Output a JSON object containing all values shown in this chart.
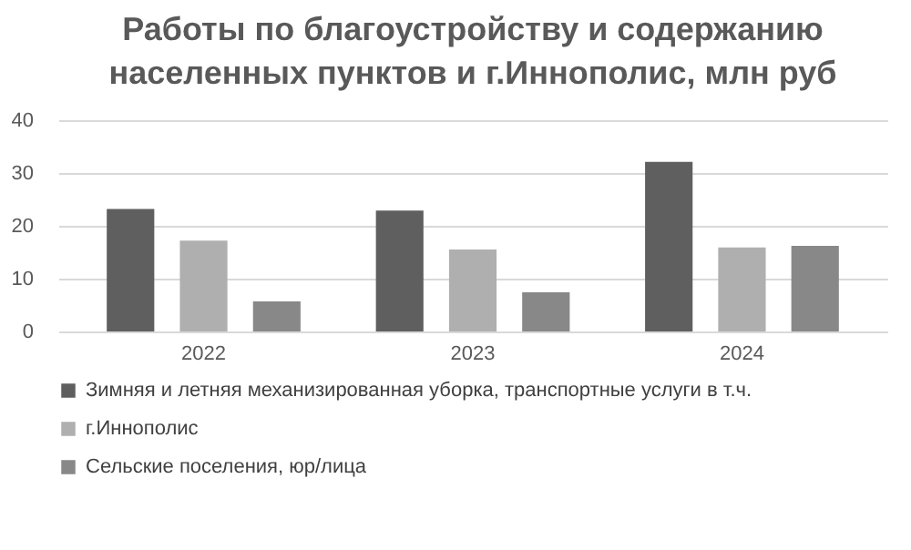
{
  "chart_data": {
    "type": "bar",
    "title": "Работы по благоустройству и содержанию населенных пунктов и г.Иннополис, млн руб",
    "categories": [
      "2022",
      "2023",
      "2024"
    ],
    "series": [
      {
        "name": "Зимняя и летняя механизированная уборка, транспортные услуги  в т.ч.",
        "color": "#5f5f5f",
        "values": [
          23.2,
          22.9,
          32.1
        ]
      },
      {
        "name": "г.Иннополис",
        "color": "#afafaf",
        "values": [
          17.2,
          15.5,
          15.9
        ]
      },
      {
        "name": "Сельские поселения, юр/лица",
        "color": "#888888",
        "values": [
          5.7,
          7.4,
          16.2
        ]
      }
    ],
    "ylim": [
      0,
      40
    ],
    "yticks": [
      0,
      10,
      20,
      30,
      40
    ],
    "grid": "y",
    "legend": "bottom"
  }
}
